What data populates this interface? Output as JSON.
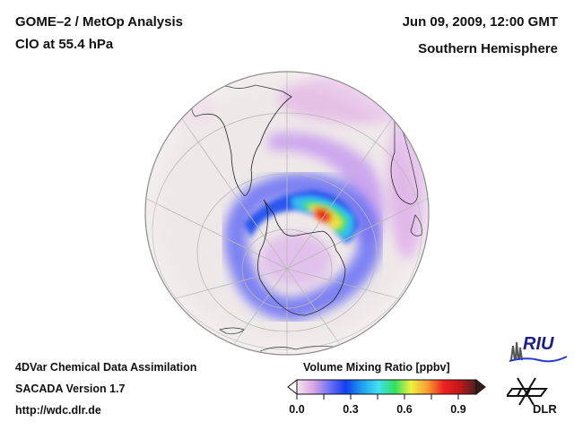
{
  "header": {
    "title": "GOME–2 / MetOp Analysis",
    "subtitle": "ClO at 55.4 hPa",
    "datetime": "Jun 09, 2009, 12:00 GMT",
    "region": "Southern Hemisphere"
  },
  "footer": {
    "line1": "4DVar Chemical Data Assimilation",
    "line2": "SACADA Version 1.7",
    "line3": "http://wdc.dlr.de"
  },
  "colorbar": {
    "title": "Volume Mixing Ratio [ppbv]",
    "ticks": [
      "0.0",
      "0.3",
      "0.6",
      "0.9"
    ],
    "tick_values": [
      0.0,
      0.3,
      0.6,
      0.9
    ],
    "range": [
      0.0,
      1.0
    ],
    "colors": [
      "#f3e6ec",
      "#d9a6e6",
      "#7070f8",
      "#1040f0",
      "#20a0f0",
      "#40e0f0",
      "#30e060",
      "#f0f040",
      "#f8a030",
      "#f02020",
      "#c01818",
      "#4a2020"
    ],
    "extend": "both"
  },
  "map": {
    "projection": "orthographic",
    "background_color": "#efe9ea",
    "grid_color": "#b8b8b8",
    "coast_color": "#222222"
  },
  "logos": {
    "riu": "RIU",
    "dlr": "DLR"
  }
}
